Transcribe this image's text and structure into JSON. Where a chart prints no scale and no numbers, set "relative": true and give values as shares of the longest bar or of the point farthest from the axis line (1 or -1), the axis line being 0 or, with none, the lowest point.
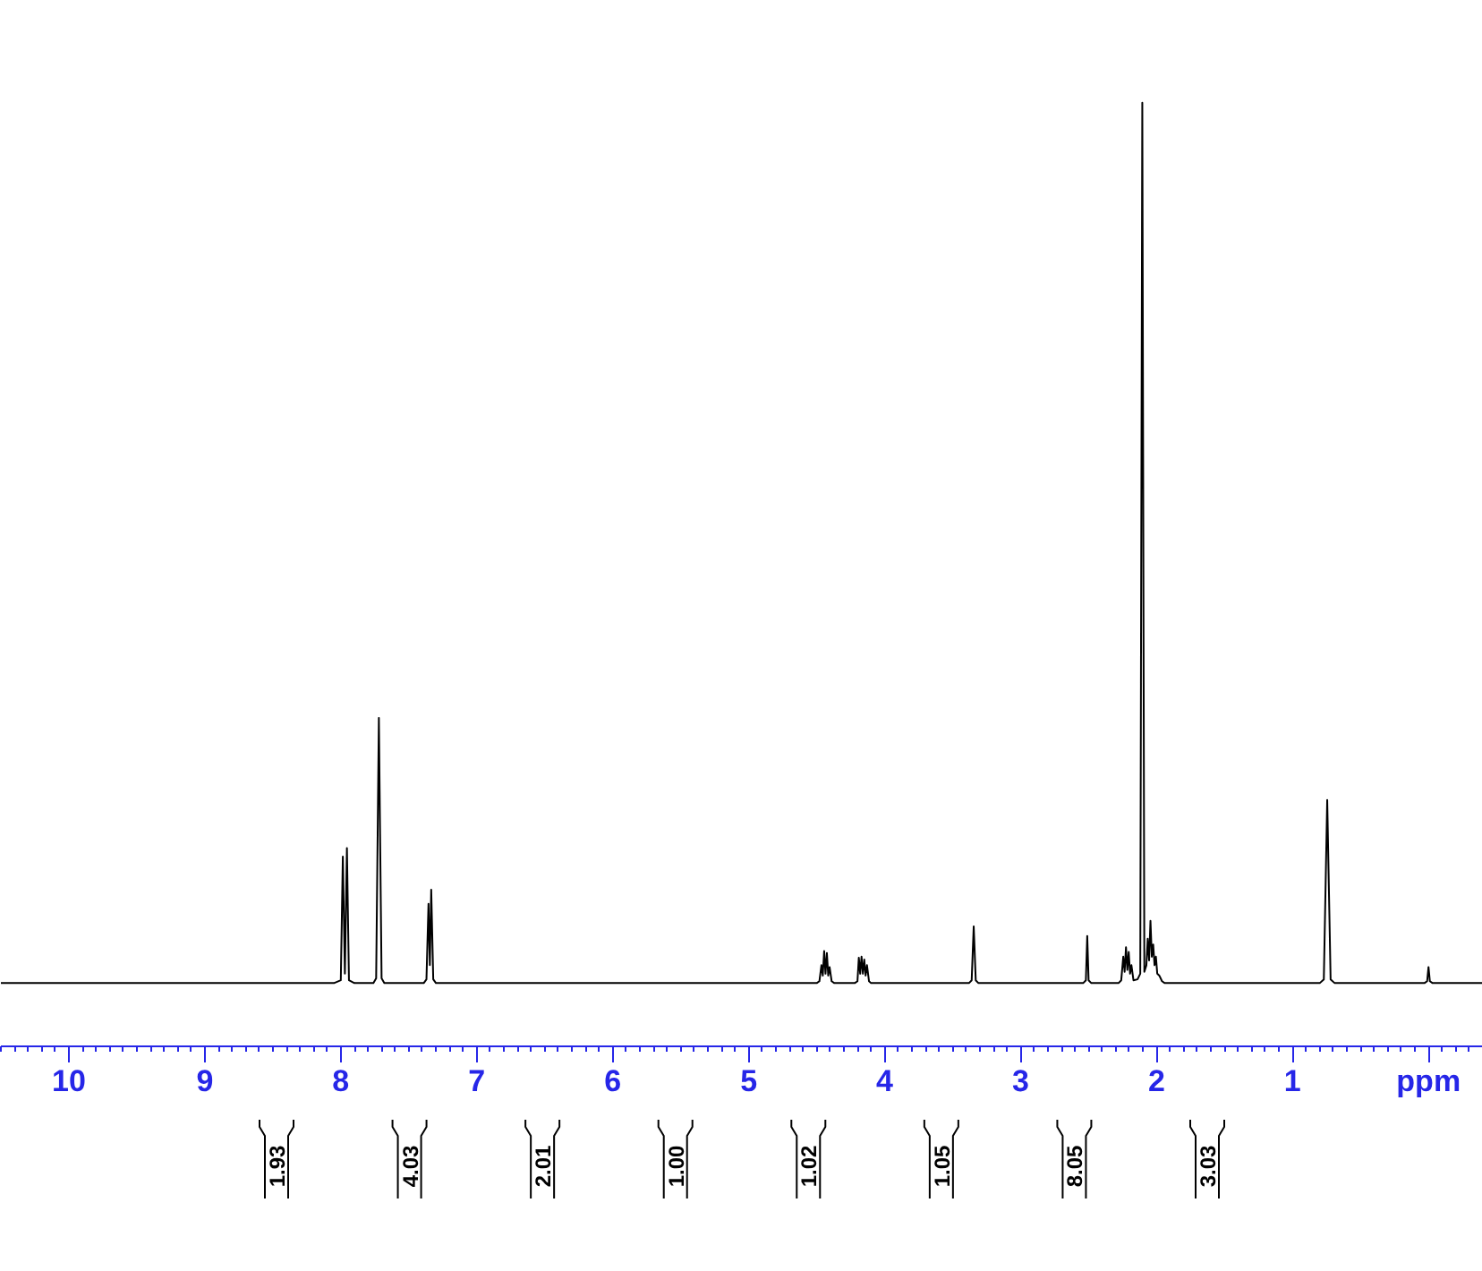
{
  "chart_data": {
    "type": "line",
    "relative": true,
    "xlim": [
      10.5,
      -0.4
    ],
    "xticks": [
      10,
      9,
      8,
      7,
      6,
      5,
      4,
      3,
      2,
      1,
      {
        "value": 0,
        "label": "ppm"
      }
    ],
    "grid": false,
    "marker": "none",
    "line_style": "solid",
    "x": [
      10.5,
      8.05,
      8.0,
      7.985,
      7.97,
      7.955,
      7.94,
      7.9,
      7.76,
      7.74,
      7.72,
      7.7,
      7.68,
      7.39,
      7.37,
      7.355,
      7.345,
      7.335,
      7.32,
      7.3,
      4.5,
      4.48,
      4.465,
      4.455,
      4.445,
      4.435,
      4.425,
      4.415,
      4.405,
      4.39,
      4.37,
      4.22,
      4.2,
      4.19,
      4.18,
      4.17,
      4.16,
      4.15,
      4.14,
      4.13,
      4.115,
      4.1,
      3.38,
      3.36,
      3.345,
      3.33,
      3.31,
      2.54,
      2.52,
      2.51,
      2.5,
      2.48,
      2.28,
      2.26,
      2.245,
      2.235,
      2.225,
      2.215,
      2.205,
      2.195,
      2.185,
      2.17,
      2.14,
      2.12,
      2.105,
      2.09,
      2.075,
      2.065,
      2.055,
      2.045,
      2.035,
      2.025,
      2.015,
      2.005,
      1.995,
      1.98,
      1.96,
      1.94,
      0.8,
      0.77,
      0.745,
      0.72,
      0.69,
      0.03,
      0.01,
      0.0,
      -0.01,
      -0.03,
      -0.4
    ],
    "series": [
      {
        "color": "#000000",
        "values": [
          0.067,
          0.067,
          0.07,
          0.201,
          0.077,
          0.21,
          0.07,
          0.067,
          0.067,
          0.072,
          0.348,
          0.072,
          0.067,
          0.067,
          0.071,
          0.151,
          0.086,
          0.166,
          0.071,
          0.067,
          0.067,
          0.069,
          0.086,
          0.075,
          0.101,
          0.077,
          0.099,
          0.075,
          0.084,
          0.069,
          0.067,
          0.067,
          0.069,
          0.094,
          0.077,
          0.095,
          0.077,
          0.092,
          0.075,
          0.086,
          0.069,
          0.067,
          0.067,
          0.07,
          0.127,
          0.07,
          0.067,
          0.067,
          0.07,
          0.117,
          0.07,
          0.067,
          0.067,
          0.07,
          0.095,
          0.079,
          0.105,
          0.081,
          0.1,
          0.077,
          0.086,
          0.07,
          0.071,
          0.077,
          1.0,
          0.079,
          0.086,
          0.114,
          0.091,
          0.133,
          0.095,
          0.108,
          0.086,
          0.095,
          0.077,
          0.075,
          0.069,
          0.067,
          0.067,
          0.071,
          0.261,
          0.071,
          0.067,
          0.067,
          0.069,
          0.084,
          0.069,
          0.067,
          0.067
        ]
      }
    ],
    "annotations": [
      "1.93",
      "4.03",
      "2.01",
      "1.00",
      "1.02",
      "1.05",
      "8.05",
      "3.03"
    ]
  }
}
